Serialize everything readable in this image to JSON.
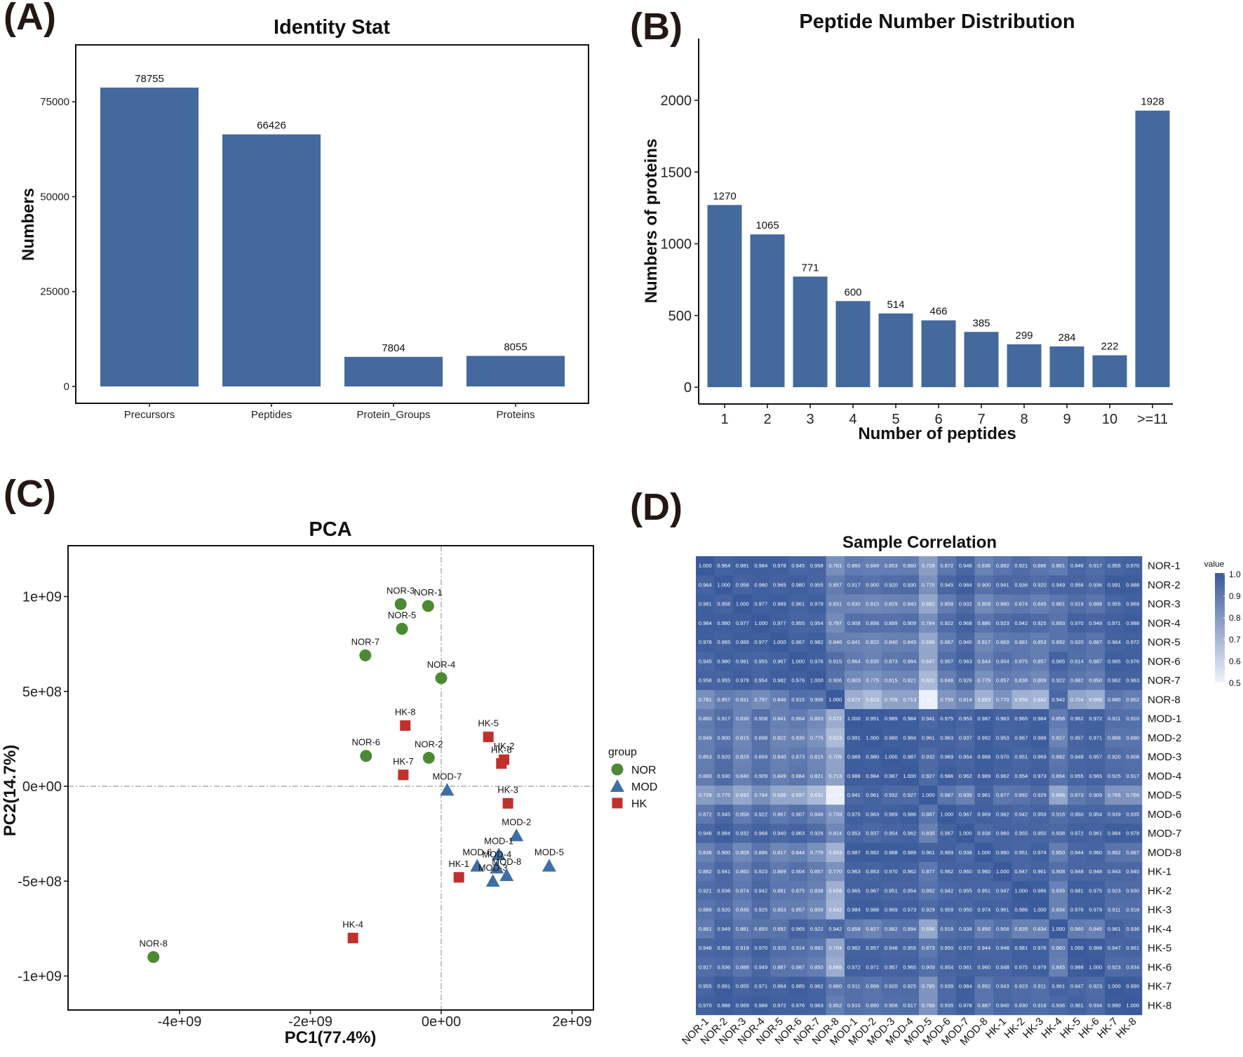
{
  "panel_labels": {
    "a": "(A)",
    "b": "(B)",
    "c": "(C)",
    "d": "(D)"
  },
  "colors": {
    "bar": "#44699c",
    "nor": "#4b8a33",
    "mod": "#3f6ea5",
    "hk": "#c0302c",
    "hm_high": "#3a5a9b",
    "hm_low": "#eef3fb"
  },
  "chart_data": [
    {
      "id": "identity_stat",
      "type": "bar",
      "title": "Identity Stat",
      "xlabel": "",
      "ylabel": "Numbers",
      "categories": [
        "Precursors",
        "Peptides",
        "Protein_Groups",
        "Proteins"
      ],
      "values": [
        78755,
        66426,
        7804,
        8055
      ],
      "value_labels": [
        "78755",
        "66426",
        "7804",
        "8055"
      ],
      "ylim": [
        0,
        90000
      ],
      "yticks": [
        0,
        25000,
        50000,
        75000
      ],
      "ytick_labels": [
        "0",
        "25000",
        "50000",
        "75000"
      ]
    },
    {
      "id": "peptide_dist",
      "type": "bar",
      "title": "Peptide Number Distribution",
      "xlabel": "Number of peptides",
      "ylabel": "Numbers of proteins",
      "categories": [
        "1",
        "2",
        "3",
        "4",
        "5",
        "6",
        "7",
        "8",
        "9",
        "10",
        ">=11"
      ],
      "values": [
        1270,
        1065,
        771,
        600,
        514,
        466,
        385,
        299,
        284,
        222,
        1928
      ],
      "value_labels": [
        "1270",
        "1065",
        "771",
        "600",
        "514",
        "466",
        "385",
        "299",
        "284",
        "222",
        "1928"
      ],
      "ylim": [
        0,
        2400
      ],
      "yticks": [
        0,
        500,
        1000,
        1500,
        2000
      ],
      "ytick_labels": [
        "0",
        "500",
        "1000",
        "1500",
        "2000"
      ]
    },
    {
      "id": "pca",
      "type": "scatter",
      "title": "PCA",
      "xlabel": "PC1(77.4%)",
      "ylabel": "PC2(14.7%)",
      "xlim": [
        -5550000000.0,
        2400000000.0
      ],
      "ylim": [
        -1170000000.0,
        1270000000.0
      ],
      "xticks": [
        -4000000000.0,
        -2000000000.0,
        0,
        2000000000.0
      ],
      "xtick_labels": [
        "-4e+09",
        "-2e+09",
        "0e+00",
        "2e+09"
      ],
      "yticks": [
        -1000000000.0,
        -500000000.0,
        0,
        500000000.0,
        1000000000.0
      ],
      "ytick_labels": [
        "-1e+09",
        "-5e+08",
        "0e+00",
        "5e+08",
        "1e+09"
      ],
      "legend_title": "group",
      "groups": [
        "NOR",
        "MOD",
        "HK"
      ],
      "points": [
        {
          "label": "NOR-1",
          "group": "NOR",
          "x": -200000000.0,
          "y": 950000000.0
        },
        {
          "label": "NOR-3",
          "group": "NOR",
          "x": -620000000.0,
          "y": 960000000.0
        },
        {
          "label": "NOR-5",
          "group": "NOR",
          "x": -600000000.0,
          "y": 830000000.0
        },
        {
          "label": "NOR-7",
          "group": "NOR",
          "x": -1160000000.0,
          "y": 690000000.0
        },
        {
          "label": "NOR-4",
          "group": "NOR",
          "x": 0.0,
          "y": 570000000.0
        },
        {
          "label": "NOR-6",
          "group": "NOR",
          "x": -1150000000.0,
          "y": 160000000.0
        },
        {
          "label": "NOR-2",
          "group": "NOR",
          "x": -190000000.0,
          "y": 150000000.0
        },
        {
          "label": "NOR-8",
          "group": "NOR",
          "x": -4400000000.0,
          "y": -900000000.0
        },
        {
          "label": "MOD-7",
          "group": "MOD",
          "x": 90000000.0,
          "y": -20000000.0
        },
        {
          "label": "MOD-2",
          "group": "MOD",
          "x": 1150000000.0,
          "y": -260000000.0
        },
        {
          "label": "MOD-1",
          "group": "MOD",
          "x": 880000000.0,
          "y": -360000000.0
        },
        {
          "label": "MOD-6",
          "group": "MOD",
          "x": 550000000.0,
          "y": -420000000.0
        },
        {
          "label": "MOD-4",
          "group": "MOD",
          "x": 850000000.0,
          "y": -430000000.0
        },
        {
          "label": "MOD-3",
          "group": "MOD",
          "x": 790000000.0,
          "y": -500000000.0
        },
        {
          "label": "MOD-8",
          "group": "MOD",
          "x": 1000000000.0,
          "y": -470000000.0
        },
        {
          "label": "MOD-5",
          "group": "MOD",
          "x": 1650000000.0,
          "y": -420000000.0
        },
        {
          "label": "HK-8",
          "group": "HK",
          "x": -550000000.0,
          "y": 320000000.0
        },
        {
          "label": "HK-7",
          "group": "HK",
          "x": -580000000.0,
          "y": 60000000.0
        },
        {
          "label": "HK-5",
          "group": "HK",
          "x": 720000000.0,
          "y": 260000000.0
        },
        {
          "label": "HK-2",
          "group": "HK",
          "x": 960000000.0,
          "y": 140000000.0
        },
        {
          "label": "HK-6",
          "group": "HK",
          "x": 920000000.0,
          "y": 120000000.0
        },
        {
          "label": "HK-3",
          "group": "HK",
          "x": 1020000000.0,
          "y": -90000000.0
        },
        {
          "label": "HK-1",
          "group": "HK",
          "x": 270000000.0,
          "y": -480000000.0
        },
        {
          "label": "HK-4",
          "group": "HK",
          "x": -1350000000.0,
          "y": -800000000.0
        }
      ]
    },
    {
      "id": "sample_corr",
      "type": "heatmap",
      "title": "Sample Correlation",
      "legend_title": "value",
      "legend_ticks": [
        "1.0",
        "0.9",
        "0.8",
        "0.7",
        "0.6",
        "0.5"
      ],
      "labels": [
        "NOR-1",
        "NOR-2",
        "NOR-3",
        "NOR-4",
        "NOR-5",
        "NOR-6",
        "NOR-7",
        "NOR-8",
        "MOD-1",
        "MOD-2",
        "MOD-3",
        "MOD-4",
        "MOD-5",
        "MOD-6",
        "MOD-7",
        "MOD-8",
        "HK-1",
        "HK-2",
        "HK-3",
        "HK-4",
        "HK-5",
        "HK-6",
        "HK-7",
        "HK-8"
      ],
      "matrix": [
        [
          1.0,
          0.964,
          0.981,
          0.984,
          0.978,
          0.945,
          0.958,
          0.781,
          0.86,
          0.849,
          0.853,
          0.86,
          0.728,
          0.872,
          0.946,
          0.836,
          0.882,
          0.921,
          0.886,
          0.861,
          0.946,
          0.917,
          0.955,
          0.97
        ],
        [
          0.964,
          1.0,
          0.958,
          0.98,
          0.965,
          0.98,
          0.955,
          0.857,
          0.917,
          0.9,
          0.92,
          0.93,
          0.775,
          0.945,
          0.984,
          0.9,
          0.941,
          0.936,
          0.92,
          0.949,
          0.958,
          0.936,
          0.991,
          0.988
        ],
        [
          0.981,
          0.958,
          1.0,
          0.977,
          0.989,
          0.961,
          0.979,
          0.831,
          0.83,
          0.815,
          0.829,
          0.84,
          0.692,
          0.858,
          0.932,
          0.809,
          0.86,
          0.874,
          0.845,
          0.881,
          0.919,
          0.888,
          0.955,
          0.969
        ],
        [
          0.984,
          0.98,
          0.977,
          1.0,
          0.977,
          0.955,
          0.954,
          0.797,
          0.908,
          0.898,
          0.899,
          0.909,
          0.784,
          0.922,
          0.968,
          0.886,
          0.923,
          0.942,
          0.925,
          0.893,
          0.97,
          0.949,
          0.971,
          0.988
        ],
        [
          0.978,
          0.965,
          0.989,
          0.977,
          1.0,
          0.967,
          0.982,
          0.846,
          0.841,
          0.822,
          0.84,
          0.849,
          0.696,
          0.867,
          0.94,
          0.817,
          0.869,
          0.881,
          0.853,
          0.892,
          0.92,
          0.887,
          0.964,
          0.972
        ],
        [
          0.945,
          0.98,
          0.961,
          0.955,
          0.967,
          1.0,
          0.976,
          0.915,
          0.864,
          0.835,
          0.873,
          0.884,
          0.697,
          0.907,
          0.963,
          0.844,
          0.904,
          0.875,
          0.857,
          0.965,
          0.914,
          0.887,
          0.985,
          0.976
        ],
        [
          0.958,
          0.955,
          0.979,
          0.954,
          0.982,
          0.976,
          1.0,
          0.906,
          0.803,
          0.775,
          0.815,
          0.821,
          0.631,
          0.846,
          0.926,
          0.779,
          0.857,
          0.838,
          0.809,
          0.922,
          0.882,
          0.85,
          0.962,
          0.963
        ],
        [
          0.781,
          0.857,
          0.831,
          0.797,
          0.846,
          0.915,
          0.906,
          1.0,
          0.672,
          0.623,
          0.709,
          0.713,
          0.457,
          0.759,
          0.814,
          0.653,
          0.77,
          0.658,
          0.642,
          0.942,
          0.704,
          0.668,
          0.88,
          0.852
        ],
        [
          0.86,
          0.917,
          0.83,
          0.908,
          0.841,
          0.864,
          0.803,
          0.672,
          1.0,
          0.991,
          0.989,
          0.984,
          0.941,
          0.975,
          0.953,
          0.987,
          0.963,
          0.965,
          0.984,
          0.858,
          0.962,
          0.972,
          0.911,
          0.91
        ],
        [
          0.849,
          0.9,
          0.815,
          0.898,
          0.822,
          0.835,
          0.775,
          0.623,
          0.991,
          1.0,
          0.98,
          0.984,
          0.961,
          0.963,
          0.937,
          0.992,
          0.953,
          0.967,
          0.988,
          0.827,
          0.957,
          0.971,
          0.888,
          0.89
        ],
        [
          0.853,
          0.92,
          0.829,
          0.899,
          0.84,
          0.873,
          0.815,
          0.709,
          0.989,
          0.98,
          1.0,
          0.987,
          0.932,
          0.969,
          0.954,
          0.988,
          0.97,
          0.951,
          0.969,
          0.882,
          0.948,
          0.957,
          0.92,
          0.908
        ],
        [
          0.86,
          0.93,
          0.84,
          0.909,
          0.849,
          0.884,
          0.821,
          0.713,
          0.988,
          0.984,
          0.987,
          1.0,
          0.927,
          0.986,
          0.962,
          0.989,
          0.962,
          0.954,
          0.973,
          0.894,
          0.955,
          0.965,
          0.925,
          0.917
        ],
        [
          0.728,
          0.775,
          0.692,
          0.784,
          0.696,
          0.697,
          0.631,
          0.457,
          0.941,
          0.961,
          0.932,
          0.927,
          1.0,
          0.887,
          0.835,
          0.961,
          0.877,
          0.892,
          0.929,
          0.696,
          0.873,
          0.909,
          0.765,
          0.766
        ],
        [
          0.872,
          0.945,
          0.858,
          0.922,
          0.867,
          0.907,
          0.846,
          0.759,
          0.975,
          0.963,
          0.969,
          0.986,
          0.887,
          1.0,
          0.967,
          0.969,
          0.962,
          0.942,
          0.959,
          0.918,
          0.95,
          0.954,
          0.939,
          0.935
        ],
        [
          0.946,
          0.984,
          0.932,
          0.968,
          0.94,
          0.963,
          0.926,
          0.814,
          0.953,
          0.937,
          0.954,
          0.962,
          0.835,
          0.967,
          1.0,
          0.938,
          0.96,
          0.955,
          0.95,
          0.938,
          0.972,
          0.961,
          0.984,
          0.978
        ],
        [
          0.836,
          0.9,
          0.809,
          0.886,
          0.817,
          0.844,
          0.779,
          0.653,
          0.987,
          0.992,
          0.988,
          0.989,
          0.961,
          0.969,
          0.938,
          1.0,
          0.96,
          0.951,
          0.974,
          0.85,
          0.944,
          0.96,
          0.892,
          0.887
        ],
        [
          0.882,
          0.941,
          0.86,
          0.923,
          0.869,
          0.904,
          0.857,
          0.77,
          0.963,
          0.953,
          0.97,
          0.962,
          0.877,
          0.962,
          0.96,
          0.96,
          1.0,
          0.947,
          0.961,
          0.908,
          0.948,
          0.948,
          0.943,
          0.94
        ],
        [
          0.921,
          0.936,
          0.874,
          0.942,
          0.881,
          0.875,
          0.838,
          0.658,
          0.965,
          0.967,
          0.951,
          0.954,
          0.892,
          0.942,
          0.955,
          0.951,
          0.947,
          1.0,
          0.986,
          0.835,
          0.981,
          0.975,
          0.923,
          0.93
        ],
        [
          0.886,
          0.92,
          0.845,
          0.925,
          0.853,
          0.857,
          0.809,
          0.642,
          0.984,
          0.988,
          0.969,
          0.973,
          0.929,
          0.959,
          0.95,
          0.974,
          0.961,
          0.986,
          1.0,
          0.834,
          0.976,
          0.979,
          0.911,
          0.918
        ],
        [
          0.861,
          0.949,
          0.881,
          0.893,
          0.892,
          0.965,
          0.922,
          0.942,
          0.858,
          0.827,
          0.882,
          0.894,
          0.696,
          0.918,
          0.938,
          0.85,
          0.908,
          0.835,
          0.834,
          1.0,
          0.86,
          0.845,
          0.961,
          0.936
        ],
        [
          0.946,
          0.958,
          0.919,
          0.97,
          0.92,
          0.914,
          0.882,
          0.704,
          0.962,
          0.957,
          0.948,
          0.955,
          0.873,
          0.95,
          0.972,
          0.944,
          0.948,
          0.981,
          0.976,
          0.86,
          1.0,
          0.988,
          0.947,
          0.961
        ],
        [
          0.917,
          0.936,
          0.888,
          0.949,
          0.887,
          0.887,
          0.85,
          0.668,
          0.972,
          0.971,
          0.957,
          0.965,
          0.909,
          0.954,
          0.961,
          0.96,
          0.948,
          0.975,
          0.979,
          0.845,
          0.988,
          1.0,
          0.923,
          0.934
        ],
        [
          0.955,
          0.991,
          0.955,
          0.971,
          0.964,
          0.985,
          0.962,
          0.88,
          0.911,
          0.888,
          0.92,
          0.925,
          0.765,
          0.939,
          0.984,
          0.892,
          0.943,
          0.923,
          0.911,
          0.961,
          0.947,
          0.923,
          1.0,
          0.99
        ],
        [
          0.97,
          0.988,
          0.969,
          0.988,
          0.972,
          0.976,
          0.963,
          0.852,
          0.91,
          0.89,
          0.908,
          0.917,
          0.766,
          0.935,
          0.978,
          0.887,
          0.94,
          0.93,
          0.918,
          0.936,
          0.961,
          0.934,
          0.99,
          1.0
        ]
      ]
    }
  ]
}
